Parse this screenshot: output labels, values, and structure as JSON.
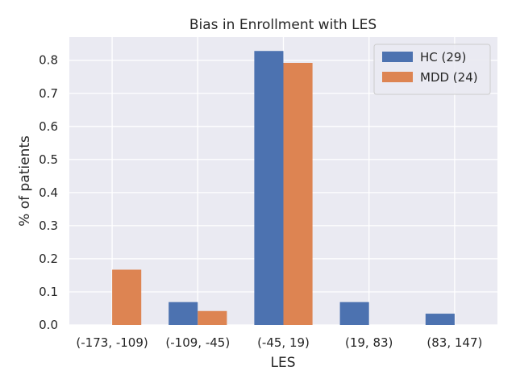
{
  "chart_data": {
    "type": "bar",
    "title": "Bias in Enrollment with LES",
    "xlabel": "LES",
    "ylabel": "% of patients",
    "categories": [
      "(-173, -109)",
      "(-109, -45)",
      "(-45, 19)",
      "(19, 83)",
      "(83, 147)"
    ],
    "series": [
      {
        "name": "HC (29)",
        "color": "#4c72b0",
        "values": [
          0.0,
          0.069,
          0.828,
          0.069,
          0.034
        ]
      },
      {
        "name": "MDD (24)",
        "color": "#dd8452",
        "values": [
          0.167,
          0.042,
          0.792,
          0.0,
          0.0
        ]
      }
    ],
    "ylim": [
      0,
      0.87
    ],
    "yticks": [
      0.0,
      0.1,
      0.2,
      0.3,
      0.4,
      0.5,
      0.6,
      0.7,
      0.8
    ],
    "ytick_labels": [
      "0.0",
      "0.1",
      "0.2",
      "0.3",
      "0.4",
      "0.5",
      "0.6",
      "0.7",
      "0.8"
    ],
    "grid": true,
    "legend_position": "top-right",
    "plot_background": "#eaeaf2"
  }
}
